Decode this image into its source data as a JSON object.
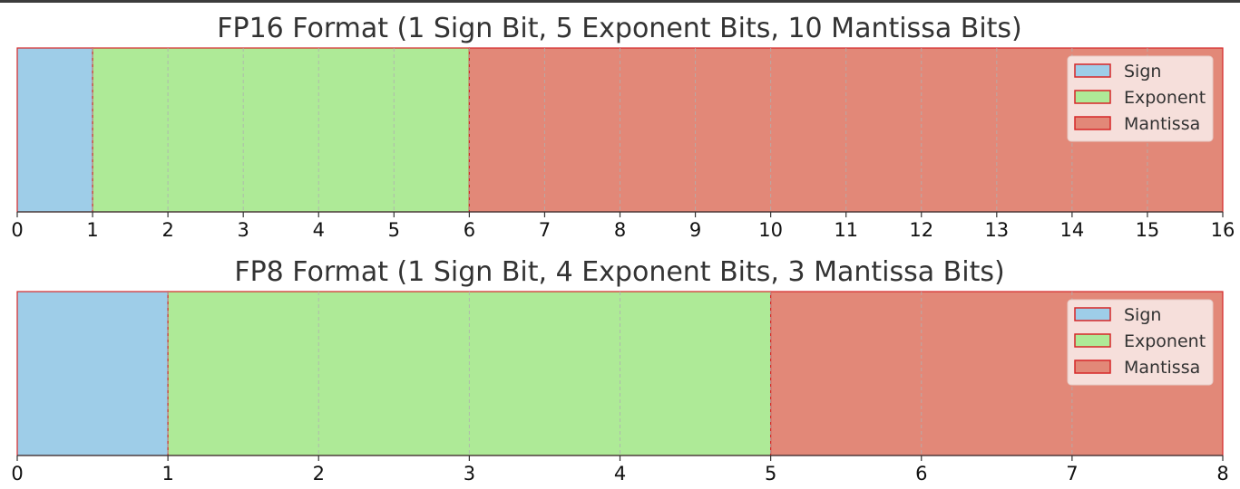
{
  "chart_data": [
    {
      "type": "bar",
      "orientation": "horizontal-stacked",
      "title": "FP16 Format (1 Sign Bit, 5 Exponent Bits, 10 Mantissa Bits)",
      "xlim": [
        0,
        16
      ],
      "xticks": [
        "0",
        "1",
        "2",
        "3",
        "4",
        "5",
        "6",
        "7",
        "8",
        "9",
        "10",
        "11",
        "12",
        "13",
        "14",
        "15",
        "16"
      ],
      "grid": true,
      "legend_position": "top-right",
      "segments": [
        {
          "name": "Sign",
          "start": 0,
          "width": 1,
          "color": "#9ecde8"
        },
        {
          "name": "Exponent",
          "start": 1,
          "width": 5,
          "color": "#aeea97"
        },
        {
          "name": "Mantissa",
          "start": 6,
          "width": 10,
          "color": "#e28878"
        }
      ],
      "legend": [
        "Sign",
        "Exponent",
        "Mantissa"
      ]
    },
    {
      "type": "bar",
      "orientation": "horizontal-stacked",
      "title": "FP8 Format (1 Sign Bit, 4 Exponent Bits, 3 Mantissa Bits)",
      "xlim": [
        0,
        8
      ],
      "xticks": [
        "0",
        "1",
        "2",
        "3",
        "4",
        "5",
        "6",
        "7",
        "8"
      ],
      "grid": true,
      "legend_position": "top-right",
      "segments": [
        {
          "name": "Sign",
          "start": 0,
          "width": 1,
          "color": "#9ecde8"
        },
        {
          "name": "Exponent",
          "start": 1,
          "width": 4,
          "color": "#aeea97"
        },
        {
          "name": "Mantissa",
          "start": 5,
          "width": 3,
          "color": "#e28878"
        }
      ],
      "legend": [
        "Sign",
        "Exponent",
        "Mantissa"
      ]
    }
  ],
  "colors": {
    "edge": "#d62728",
    "grid": "#b0b0b0",
    "legend_bg": "#f8e4e1"
  }
}
